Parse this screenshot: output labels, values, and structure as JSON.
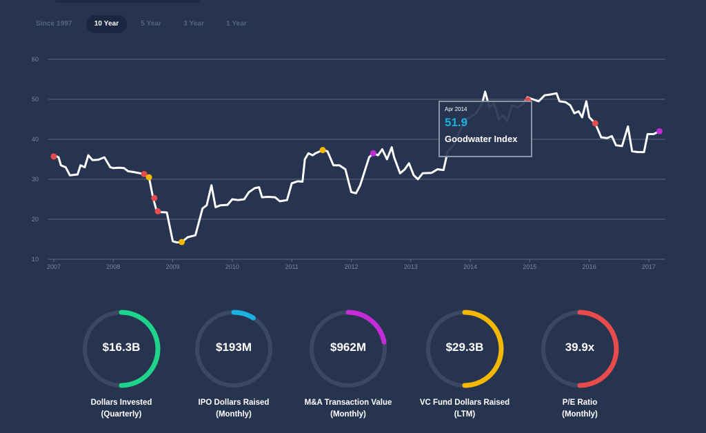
{
  "range_tabs": [
    {
      "label": "Since 1997",
      "active": false
    },
    {
      "label": "10 Year",
      "active": true
    },
    {
      "label": "5 Year",
      "active": false
    },
    {
      "label": "3 Year",
      "active": false
    },
    {
      "label": "1 Year",
      "active": false
    }
  ],
  "tooltip": {
    "date": "Apr 2014",
    "value": "51.9",
    "label": "Goodwater Index"
  },
  "chart_data": {
    "type": "line",
    "title": "Goodwater Index",
    "xlabel": "",
    "ylabel": "",
    "xlim": [
      2007,
      2017.25
    ],
    "ylim": [
      10,
      60
    ],
    "y_ticks": [
      10,
      20,
      30,
      40,
      50,
      60
    ],
    "x_ticks": [
      "2007",
      "2008",
      "2009",
      "2010",
      "2011",
      "2012",
      "2013",
      "2014",
      "2015",
      "2016",
      "2017"
    ],
    "grid": true,
    "series": [
      {
        "name": "Goodwater Index",
        "color": "#ffffff",
        "points": [
          [
            2007.0,
            36.0
          ],
          [
            2007.08,
            35.5
          ],
          [
            2007.12,
            33.5
          ],
          [
            2007.2,
            33.0
          ],
          [
            2007.27,
            31.0
          ],
          [
            2007.4,
            31.2
          ],
          [
            2007.45,
            33.5
          ],
          [
            2007.52,
            33.0
          ],
          [
            2007.58,
            36.0
          ],
          [
            2007.65,
            34.8
          ],
          [
            2007.75,
            34.9
          ],
          [
            2007.85,
            35.5
          ],
          [
            2007.95,
            33.0
          ],
          [
            2008.0,
            32.8
          ],
          [
            2008.1,
            32.9
          ],
          [
            2008.18,
            32.8
          ],
          [
            2008.25,
            32.0
          ],
          [
            2008.35,
            31.8
          ],
          [
            2008.45,
            31.5
          ],
          [
            2008.5,
            31.3
          ],
          [
            2008.6,
            30.5
          ],
          [
            2008.67,
            25.3
          ],
          [
            2008.73,
            22.0
          ],
          [
            2008.8,
            21.8
          ],
          [
            2008.9,
            21.7
          ],
          [
            2009.0,
            14.5
          ],
          [
            2009.07,
            14.2
          ],
          [
            2009.15,
            14.3
          ],
          [
            2009.25,
            15.5
          ],
          [
            2009.38,
            16.0
          ],
          [
            2009.5,
            22.7
          ],
          [
            2009.57,
            23.5
          ],
          [
            2009.65,
            28.5
          ],
          [
            2009.72,
            23.0
          ],
          [
            2009.8,
            23.5
          ],
          [
            2009.92,
            23.6
          ],
          [
            2010.0,
            25.0
          ],
          [
            2010.1,
            24.8
          ],
          [
            2010.2,
            25.0
          ],
          [
            2010.28,
            26.8
          ],
          [
            2010.38,
            27.8
          ],
          [
            2010.45,
            28.0
          ],
          [
            2010.5,
            25.5
          ],
          [
            2010.6,
            25.6
          ],
          [
            2010.72,
            25.5
          ],
          [
            2010.8,
            24.5
          ],
          [
            2010.92,
            24.8
          ],
          [
            2011.0,
            29.0
          ],
          [
            2011.1,
            29.5
          ],
          [
            2011.18,
            29.4
          ],
          [
            2011.22,
            35.0
          ],
          [
            2011.28,
            36.5
          ],
          [
            2011.35,
            36.0
          ],
          [
            2011.4,
            36.5
          ],
          [
            2011.52,
            37.3
          ],
          [
            2011.6,
            37.0
          ],
          [
            2011.7,
            33.5
          ],
          [
            2011.8,
            33.5
          ],
          [
            2011.9,
            32.5
          ],
          [
            2012.0,
            26.8
          ],
          [
            2012.08,
            26.5
          ],
          [
            2012.15,
            28.5
          ],
          [
            2012.3,
            35.5
          ],
          [
            2012.37,
            36.5
          ],
          [
            2012.45,
            36.0
          ],
          [
            2012.52,
            37.5
          ],
          [
            2012.6,
            35.0
          ],
          [
            2012.68,
            38.0
          ],
          [
            2012.72,
            35.5
          ],
          [
            2012.82,
            31.5
          ],
          [
            2012.9,
            32.5
          ],
          [
            2012.97,
            34.0
          ],
          [
            2013.05,
            31.0
          ],
          [
            2013.12,
            30.0
          ],
          [
            2013.2,
            31.5
          ],
          [
            2013.35,
            31.6
          ],
          [
            2013.45,
            32.5
          ],
          [
            2013.55,
            32.3
          ],
          [
            2013.62,
            37.0
          ],
          [
            2013.72,
            38.5
          ],
          [
            2013.82,
            42.0
          ],
          [
            2013.92,
            45.0
          ],
          [
            2014.0,
            45.5
          ],
          [
            2014.1,
            46.5
          ],
          [
            2014.2,
            49.0
          ],
          [
            2014.25,
            51.9
          ],
          [
            2014.32,
            48.0
          ],
          [
            2014.4,
            49.0
          ],
          [
            2014.48,
            45.0
          ],
          [
            2014.55,
            46.0
          ],
          [
            2014.62,
            44.5
          ],
          [
            2014.7,
            48.5
          ],
          [
            2014.8,
            48.0
          ],
          [
            2014.9,
            49.0
          ],
          [
            2014.96,
            50.5
          ],
          [
            2015.05,
            50.0
          ],
          [
            2015.15,
            49.5
          ],
          [
            2015.25,
            51.0
          ],
          [
            2015.35,
            51.2
          ],
          [
            2015.45,
            51.5
          ],
          [
            2015.5,
            49.5
          ],
          [
            2015.6,
            49.3
          ],
          [
            2015.68,
            48.5
          ],
          [
            2015.75,
            46.5
          ],
          [
            2015.82,
            47.0
          ],
          [
            2015.88,
            45.5
          ],
          [
            2015.95,
            49.5
          ],
          [
            2016.0,
            45.5
          ],
          [
            2016.1,
            44.0
          ],
          [
            2016.2,
            40.5
          ],
          [
            2016.3,
            40.3
          ],
          [
            2016.38,
            40.8
          ],
          [
            2016.45,
            38.5
          ],
          [
            2016.55,
            38.3
          ],
          [
            2016.65,
            43.2
          ],
          [
            2016.72,
            37.0
          ],
          [
            2016.82,
            36.8
          ],
          [
            2016.92,
            36.8
          ],
          [
            2016.98,
            41.3
          ],
          [
            2017.08,
            41.3
          ],
          [
            2017.18,
            42.0
          ]
        ]
      }
    ],
    "markers": [
      {
        "x": 2007.0,
        "y": 35.7,
        "color": "#e84b4b"
      },
      {
        "x": 2008.52,
        "y": 31.3,
        "color": "#e84b4b"
      },
      {
        "x": 2008.6,
        "y": 30.5,
        "color": "#f5b800"
      },
      {
        "x": 2008.69,
        "y": 25.3,
        "color": "#e84b4b"
      },
      {
        "x": 2008.75,
        "y": 22.0,
        "color": "#e84b4b"
      },
      {
        "x": 2009.15,
        "y": 14.3,
        "color": "#f5b800"
      },
      {
        "x": 2011.52,
        "y": 37.3,
        "color": "#f5b800"
      },
      {
        "x": 2012.37,
        "y": 36.5,
        "color": "#c22bd6"
      },
      {
        "x": 2014.97,
        "y": 49.8,
        "color": "#e84b4b"
      },
      {
        "x": 2016.1,
        "y": 44.0,
        "color": "#e84b4b"
      },
      {
        "x": 2017.18,
        "y": 42.0,
        "color": "#c22bd6"
      }
    ]
  },
  "metrics": [
    {
      "value": "$16.3B",
      "label_line1": "Dollars Invested",
      "label_line2": "(Quarterly)",
      "color": "#1fd38b",
      "fraction": 0.5
    },
    {
      "value": "$193M",
      "label_line1": "IPO Dollars Raised",
      "label_line2": "(Monthly)",
      "color": "#1ab0e0",
      "fraction": 0.09
    },
    {
      "value": "$962M",
      "label_line1": "M&A Transaction Value",
      "label_line2": "(Monthly)",
      "color": "#c22bd6",
      "fraction": 0.22
    },
    {
      "value": "$29.3B",
      "label_line1": "VC Fund Dollars Raised",
      "label_line2": "(LTM)",
      "color": "#f5b800",
      "fraction": 0.5
    },
    {
      "value": "39.9x",
      "label_line1": "P/E Ratio",
      "label_line2": "(Monthly)",
      "color": "#e84b4b",
      "fraction": 0.5
    }
  ]
}
